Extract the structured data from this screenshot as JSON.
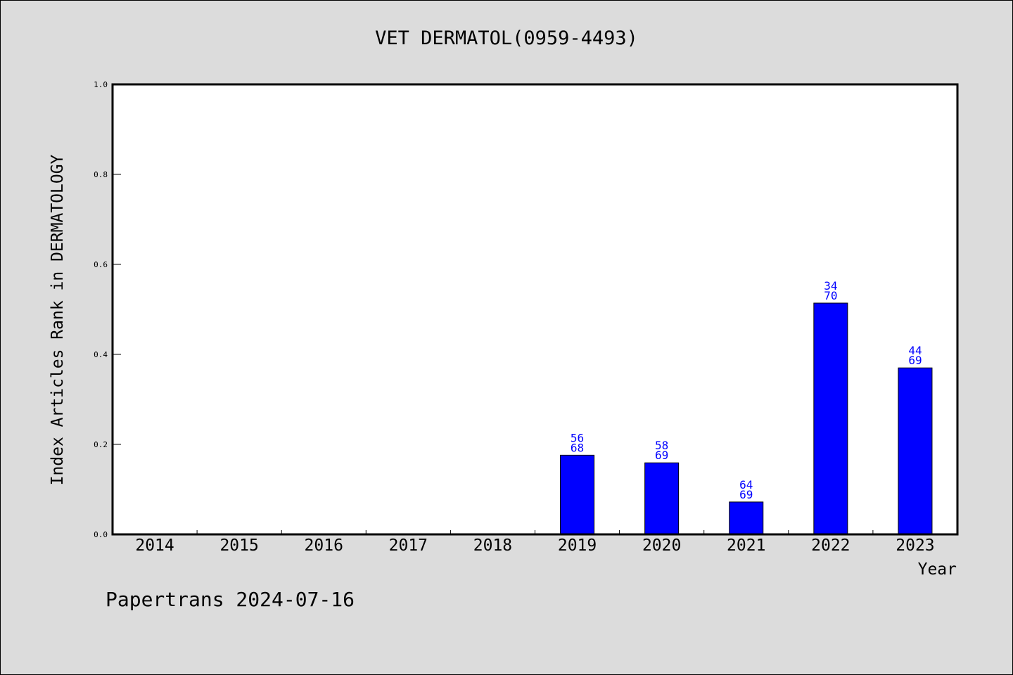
{
  "chart_data": {
    "type": "bar",
    "title": "VET DERMATOL(0959-4493)",
    "xlabel": "Year",
    "ylabel": "Index Articles Rank in DERMATOLOGY",
    "categories": [
      "2014",
      "2015",
      "2016",
      "2017",
      "2018",
      "2019",
      "2020",
      "2021",
      "2022",
      "2023"
    ],
    "values": [
      0,
      0,
      0,
      0,
      0,
      0.176,
      0.159,
      0.072,
      0.514,
      0.37
    ],
    "bar_labels": [
      null,
      null,
      null,
      null,
      null,
      [
        "56",
        "68"
      ],
      [
        "58",
        "69"
      ],
      [
        "64",
        "69"
      ],
      [
        "34",
        "70"
      ],
      [
        "44",
        "69"
      ]
    ],
    "ylim": [
      0,
      1.0
    ],
    "yticks": [
      "0.0",
      "0.2",
      "0.4",
      "0.6",
      "0.8",
      "1.0"
    ],
    "grid": false,
    "bar_color": "#0000ff",
    "label_color": "#0000cc"
  },
  "footer": "Papertrans 2024-07-16"
}
